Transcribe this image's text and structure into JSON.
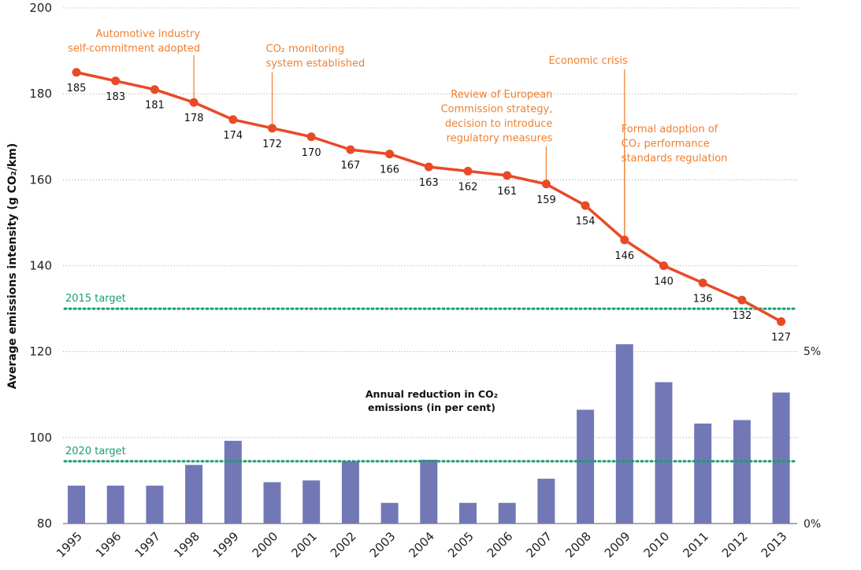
{
  "chart_data": {
    "type": "line",
    "title": "",
    "ylabel": "Average emissions intensity (g CO₂/km)",
    "ylim": [
      80,
      200
    ],
    "yticks": [
      80,
      100,
      120,
      140,
      160,
      180,
      200
    ],
    "grid": true,
    "categories": [
      "1995",
      "1996",
      "1997",
      "1998",
      "1999",
      "2000",
      "2001",
      "2002",
      "2003",
      "2004",
      "2005",
      "2006",
      "2007",
      "2008",
      "2009",
      "2010",
      "2011",
      "2012",
      "2013"
    ],
    "series": [
      {
        "name": "",
        "values": [
          185,
          183,
          181,
          178,
          174,
          172,
          170,
          167,
          166,
          163,
          162,
          161,
          159,
          154,
          146,
          140,
          136,
          132,
          127
        ]
      }
    ],
    "data_labels": [
      "185",
      "183",
      "181",
      "178",
      "174",
      "172",
      "170",
      "167",
      "166",
      "163",
      "162",
      "161",
      "159",
      "154",
      "146",
      "140",
      "136",
      "132",
      "127"
    ],
    "targets": [
      {
        "label": "2015 target",
        "value": 130
      },
      {
        "label": "2020 target",
        "value": 94.5
      }
    ],
    "annotations": [
      {
        "lines": [
          "Automotive industry",
          "self-commitment adopted"
        ],
        "year": "1998"
      },
      {
        "lines": [
          "CO₂ monitoring",
          "system established"
        ],
        "year": "2000"
      },
      {
        "lines": [
          "Economic crisis"
        ],
        "year": "2009"
      },
      {
        "lines": [
          "Review of European",
          "Commission strategy,",
          "decision to introduce",
          "regulatory measures"
        ],
        "year": "2007"
      },
      {
        "lines": [
          "Formal adoption of",
          "CO₂ performance",
          "standards regulation"
        ],
        "year": "2009"
      }
    ],
    "bars": {
      "title_lines": [
        "Annual reduction in CO₂",
        "emissions (in per cent)"
      ],
      "y2ticks": [
        "0%",
        "5%"
      ],
      "y2lim": [
        0,
        5
      ],
      "values": [
        1.1,
        1.1,
        1.1,
        1.7,
        2.4,
        1.2,
        1.25,
        1.8,
        0.6,
        1.85,
        0.6,
        0.6,
        1.3,
        3.3,
        5.2,
        4.1,
        2.9,
        3.0,
        3.8
      ]
    },
    "colors": {
      "line": "#E84A27",
      "bars": "#7278B6",
      "target": "#1A9E6B",
      "annotation": "#F07F2F"
    }
  }
}
